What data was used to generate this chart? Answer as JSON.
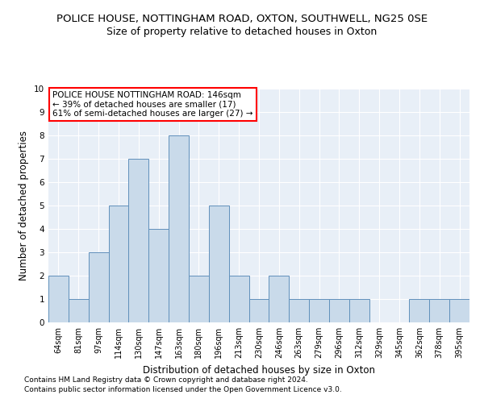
{
  "title": "POLICE HOUSE, NOTTINGHAM ROAD, OXTON, SOUTHWELL, NG25 0SE",
  "subtitle": "Size of property relative to detached houses in Oxton",
  "xlabel": "Distribution of detached houses by size in Oxton",
  "ylabel": "Number of detached properties",
  "categories": [
    "64sqm",
    "81sqm",
    "97sqm",
    "114sqm",
    "130sqm",
    "147sqm",
    "163sqm",
    "180sqm",
    "196sqm",
    "213sqm",
    "230sqm",
    "246sqm",
    "263sqm",
    "279sqm",
    "296sqm",
    "312sqm",
    "329sqm",
    "345sqm",
    "362sqm",
    "378sqm",
    "395sqm"
  ],
  "values": [
    2,
    1,
    3,
    5,
    7,
    4,
    8,
    2,
    5,
    2,
    1,
    2,
    1,
    1,
    1,
    1,
    0,
    0,
    1,
    1,
    1
  ],
  "bar_color": "#c9daea",
  "bar_edge_color": "#6090bb",
  "annotation_title": "POLICE HOUSE NOTTINGHAM ROAD: 146sqm",
  "annotation_line1": "← 39% of detached houses are smaller (17)",
  "annotation_line2": "61% of semi-detached houses are larger (27) →",
  "ylim": [
    0,
    10
  ],
  "yticks": [
    0,
    1,
    2,
    3,
    4,
    5,
    6,
    7,
    8,
    9,
    10
  ],
  "footer1": "Contains HM Land Registry data © Crown copyright and database right 2024.",
  "footer2": "Contains public sector information licensed under the Open Government Licence v3.0.",
  "title_fontsize": 9.5,
  "subtitle_fontsize": 9,
  "axis_label_fontsize": 8.5,
  "tick_fontsize": 7,
  "annotation_fontsize": 7.5,
  "footer_fontsize": 6.5,
  "background_color": "#ffffff",
  "axes_bg_color": "#e8eff7"
}
